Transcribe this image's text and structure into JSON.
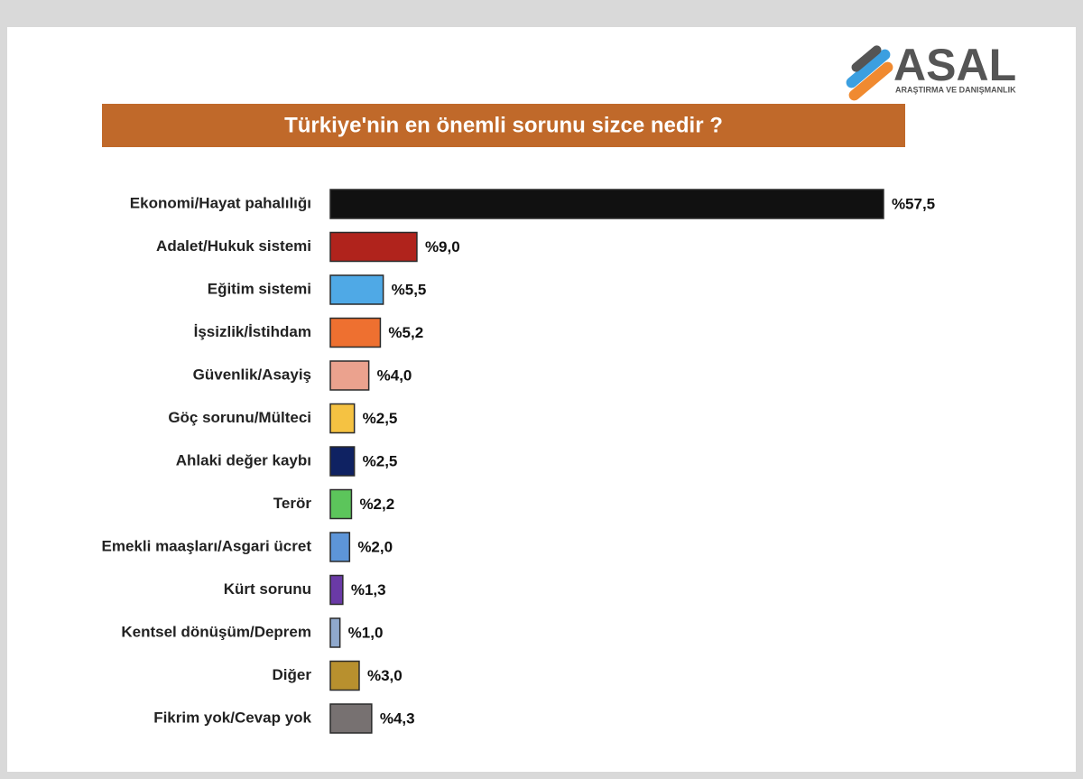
{
  "logo": {
    "name": "ASAL",
    "tagline": "ARAŞTIRMA VE DANIŞMANLIK"
  },
  "chart_data": {
    "type": "bar",
    "title": "Türkiye'nin en önemli sorunu sizce nedir ?",
    "categories": [
      "Ekonomi/Hayat pahalılığı",
      "Adalet/Hukuk sistemi",
      "Eğitim sistemi",
      "İşsizlik/İstihdam",
      "Güvenlik/Asayiş",
      "Göç sorunu/Mülteci",
      "Ahlaki değer kaybı",
      "Terör",
      "Emekli maaşları/Asgari ücret",
      "Kürt sorunu",
      "Kentsel dönüşüm/Deprem",
      "Diğer",
      "Fikrim yok/Cevap yok"
    ],
    "values": [
      57.5,
      9.0,
      5.5,
      5.2,
      4.0,
      2.5,
      2.5,
      2.2,
      2.0,
      1.3,
      1.0,
      3.0,
      4.3
    ],
    "value_labels": [
      "%57,5",
      "%9,0",
      "%5,5",
      "%5,2",
      "%4,0",
      "%2,5",
      "%2,5",
      "%2,2",
      "%2,0",
      "%1,3",
      "%1,0",
      "%3,0",
      "%4,3"
    ],
    "colors": [
      "#111111",
      "#b0231c",
      "#4fa9e6",
      "#ee7030",
      "#eba28e",
      "#f5c242",
      "#0f2262",
      "#5cc55b",
      "#5d95d8",
      "#6a3aa6",
      "#8fa8cc",
      "#b8902e",
      "#777171"
    ]
  }
}
